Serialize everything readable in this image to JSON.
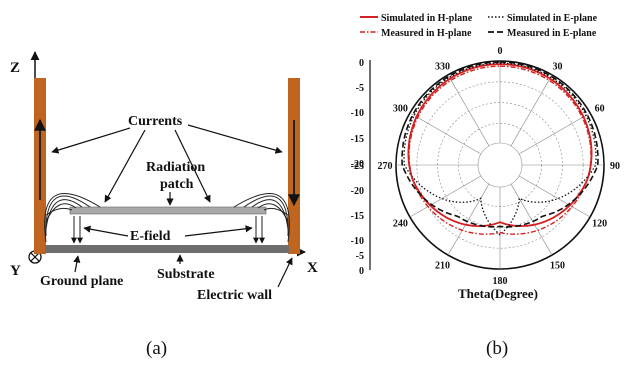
{
  "figure_a": {
    "axis_z": "Z",
    "axis_x": "X",
    "axis_y": "Y",
    "currents": "Currents",
    "radiation_patch_line1": "Radiation",
    "radiation_patch_line2": "patch",
    "e_field": "E-field",
    "ground_plane": "Ground plane",
    "substrate": "Substrate",
    "electric_wall": "Electric wall",
    "caption": "(a)",
    "colors": {
      "wall": "#c0651f",
      "patch": "#a8a8a8",
      "ground": "#6e6e6e"
    }
  },
  "figure_b": {
    "caption": "(b)",
    "theta_label": "Theta(Degree)",
    "angle_labels": [
      "0",
      "30",
      "60",
      "90",
      "120",
      "150",
      "180",
      "210",
      "240",
      "270",
      "300",
      "330"
    ],
    "radial_labels_upper": [
      "0",
      "-5",
      "-10",
      "-15",
      "-20"
    ],
    "radial_labels_lower": [
      "-25",
      "-20",
      "-15",
      "-10",
      "-5",
      "0"
    ],
    "legend": [
      {
        "name": "Simulated in H-plane",
        "color": "#d42020",
        "style": "solid"
      },
      {
        "name": "Simulated in E-plane",
        "color": "#111111",
        "style": "dotted"
      },
      {
        "name": "Measured in H-plane",
        "color": "#d42020",
        "style": "dashdot"
      },
      {
        "name": "Measured in E-plane",
        "color": "#111111",
        "style": "dashed"
      }
    ]
  }
}
